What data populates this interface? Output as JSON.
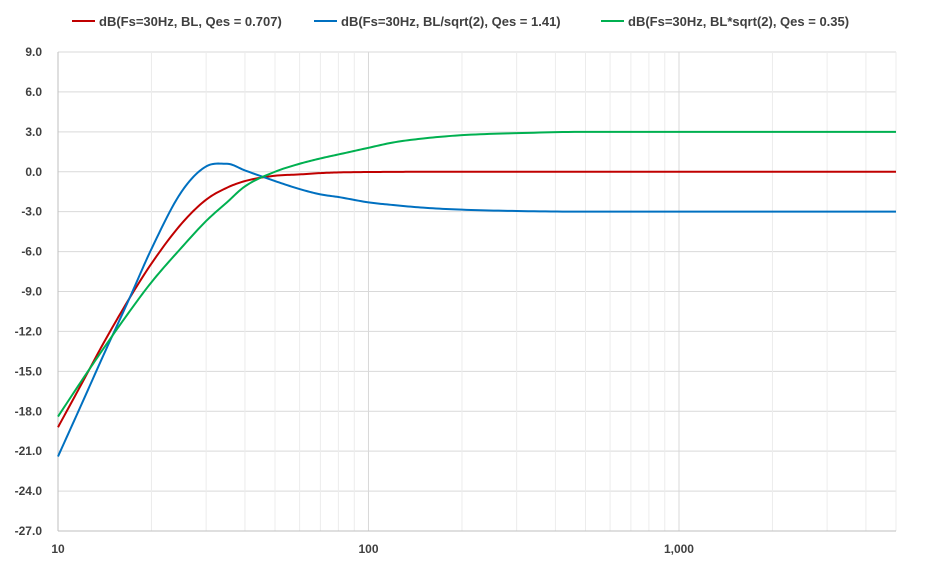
{
  "chart_data": {
    "type": "line",
    "x_scale": "log",
    "xlim": [
      10,
      5000
    ],
    "ylim": [
      -27,
      9
    ],
    "y_ticks": [
      9,
      6,
      3,
      0,
      -3,
      -6,
      -9,
      -12,
      -15,
      -18,
      -21,
      -24,
      -27
    ],
    "y_tick_labels": [
      "9.0",
      "6.0",
      "3.0",
      "0.0",
      "-3.0",
      "-6.0",
      "-9.0",
      "-12.0",
      "-15.0",
      "-18.0",
      "-21.0",
      "-24.0",
      "-27.0"
    ],
    "x_ticks": [
      10,
      100,
      1000
    ],
    "x_tick_labels": [
      "10",
      "100",
      "1,000"
    ],
    "grid": true,
    "legend_position": "top",
    "x": [
      10,
      12,
      14,
      17,
      20,
      25,
      30,
      35,
      40,
      50,
      60,
      70,
      80,
      100,
      120,
      150,
      200,
      300,
      500,
      1000,
      2000,
      5000
    ],
    "series": [
      {
        "name": "dB(Fs=30Hz, BL, Qes = 0.707)",
        "color": "#c00000",
        "values": [
          -19.2,
          -15.8,
          -12.9,
          -9.5,
          -6.9,
          -3.9,
          -2.1,
          -1.2,
          -0.7,
          -0.3,
          -0.2,
          -0.1,
          -0.05,
          -0.02,
          -0.01,
          0.0,
          0.0,
          0.0,
          0.0,
          0.0,
          0.0,
          0.0
        ]
      },
      {
        "name": "dB(Fs=30Hz, BL/sqrt(2), Qes = 1.41)",
        "color": "#0070c0",
        "values": [
          -21.4,
          -17.3,
          -13.8,
          -9.5,
          -5.8,
          -1.5,
          0.4,
          0.6,
          0.1,
          -0.7,
          -1.3,
          -1.7,
          -1.9,
          -2.3,
          -2.5,
          -2.7,
          -2.85,
          -2.95,
          -3.0,
          -3.0,
          -3.0,
          -3.0
        ]
      },
      {
        "name": "dB(Fs=30Hz, BL*sqrt(2), Qes = 0.35)",
        "color": "#00b050",
        "values": [
          -18.4,
          -15.6,
          -13.3,
          -10.5,
          -8.3,
          -5.7,
          -3.7,
          -2.3,
          -1.1,
          0.0,
          0.6,
          1.0,
          1.3,
          1.8,
          2.2,
          2.5,
          2.75,
          2.9,
          3.0,
          3.0,
          3.0,
          3.0
        ]
      }
    ]
  }
}
